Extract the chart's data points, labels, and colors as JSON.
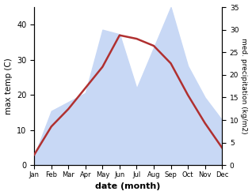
{
  "months": [
    "Jan",
    "Feb",
    "Mar",
    "Apr",
    "May",
    "Jun",
    "Jul",
    "Aug",
    "Sep",
    "Oct",
    "Nov",
    "Dec"
  ],
  "max_temp": [
    3,
    11,
    16,
    22,
    28,
    37,
    36,
    34,
    29,
    20,
    12,
    5
  ],
  "precipitation": [
    2,
    12,
    14,
    16,
    30,
    29,
    17,
    26,
    35,
    22,
    15,
    10
  ],
  "temp_color": "#b03030",
  "precip_fill_color": "#c8d8f5",
  "temp_ylim": [
    0,
    45
  ],
  "precip_ylim": [
    0,
    35
  ],
  "temp_yticks": [
    0,
    10,
    20,
    30,
    40
  ],
  "precip_yticks": [
    0,
    5,
    10,
    15,
    20,
    25,
    30,
    35
  ],
  "xlabel": "date (month)",
  "ylabel_left": "max temp (C)",
  "ylabel_right": "med. precipitation (kg/m2)"
}
